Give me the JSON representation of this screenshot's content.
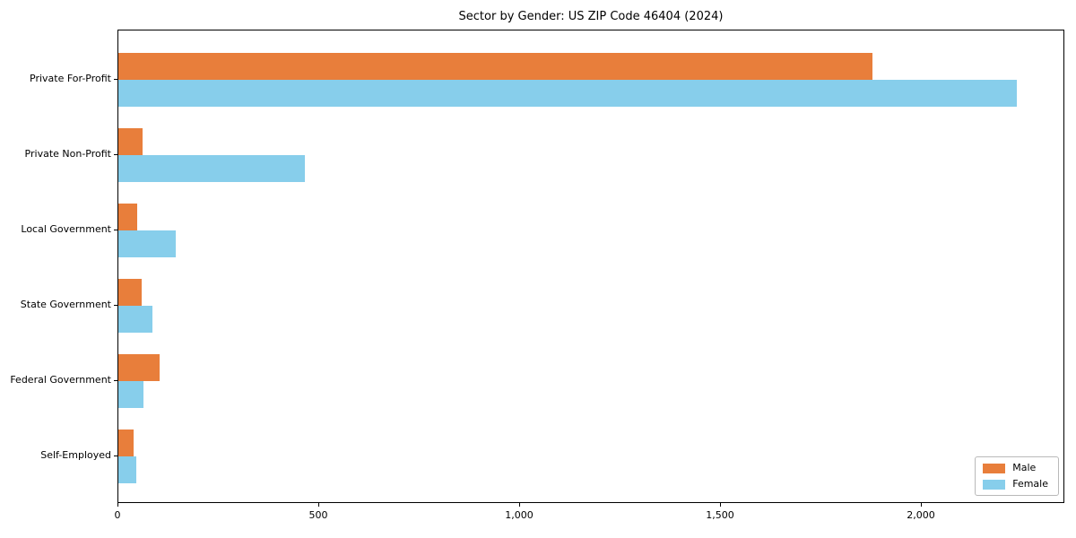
{
  "chart_data": {
    "type": "bar",
    "orientation": "horizontal",
    "title": "Sector by Gender: US ZIP Code 46404 (2024)",
    "categories": [
      "Private For-Profit",
      "Private Non-Profit",
      "Local Government",
      "State Government",
      "Federal Government",
      "Self-Employed"
    ],
    "series": [
      {
        "name": "Male",
        "color": "#E87E3B",
        "values": [
          1880,
          60,
          47,
          58,
          103,
          38
        ]
      },
      {
        "name": "Female",
        "color": "#87CEEB",
        "values": [
          2240,
          465,
          143,
          85,
          62,
          45
        ]
      }
    ],
    "xlim": [
      0,
      2357
    ],
    "x_ticks": [
      0,
      500,
      1000,
      1500,
      2000
    ],
    "x_tick_labels": [
      "0",
      "500",
      "1,000",
      "1,500",
      "2,000"
    ],
    "legend": {
      "position": "lower-right"
    },
    "grid": false,
    "background_color": "#ffffff",
    "axis_color": "#000000"
  }
}
